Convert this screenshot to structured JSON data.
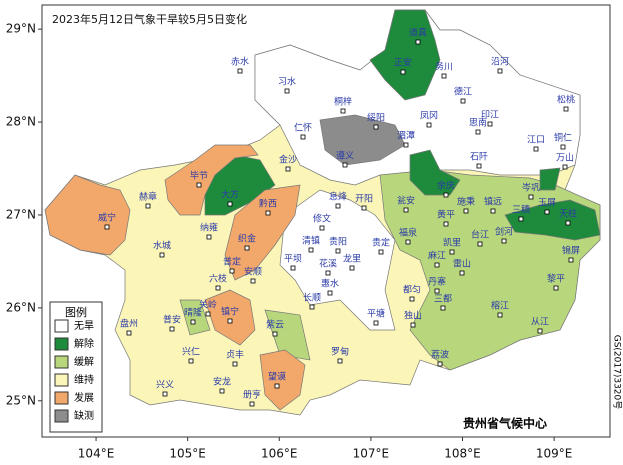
{
  "map": {
    "title": "2023年5月12日气象干旱较5月5日变化",
    "xlim": [
      103.41,
      109.61
    ],
    "ylim": [
      24.61,
      29.26
    ],
    "xticks": [
      {
        "value": 104,
        "label": "104°E"
      },
      {
        "value": 105,
        "label": "105°E"
      },
      {
        "value": 106,
        "label": "106°E"
      },
      {
        "value": 107,
        "label": "107°E"
      },
      {
        "value": 108,
        "label": "108°E"
      },
      {
        "value": 109,
        "label": "109°E"
      }
    ],
    "yticks": [
      {
        "value": 25,
        "label": "25°N"
      },
      {
        "value": 26,
        "label": "26°N"
      },
      {
        "value": 27,
        "label": "27°N"
      },
      {
        "value": 28,
        "label": "28°N"
      },
      {
        "value": 29,
        "label": "29°N"
      }
    ],
    "legend": {
      "title": "图例",
      "items": [
        {
          "name": "无旱",
          "color": "#ffffff"
        },
        {
          "name": "解除",
          "color": "#1e8a3c"
        },
        {
          "name": "缓解",
          "color": "#b8d77c"
        },
        {
          "name": "维持",
          "color": "#fbf6b8"
        },
        {
          "name": "发展",
          "color": "#f2a86b"
        },
        {
          "name": "缺测",
          "color": "#8c8c8c"
        }
      ]
    },
    "cities": [
      "道真",
      "正安",
      "务川",
      "沿河",
      "赤水",
      "习水",
      "桐梓",
      "德江",
      "印江",
      "松桃",
      "绥阳",
      "凤冈",
      "思南",
      "仁怀",
      "湄潭",
      "江口",
      "铜仁",
      "遵义",
      "石阡",
      "万山",
      "金沙",
      "毕节",
      "大方",
      "余庆",
      "岑巩",
      "赫章",
      "黔西",
      "息烽",
      "开阳",
      "施秉",
      "镇远",
      "玉屏",
      "威宁",
      "瓮安",
      "黄平",
      "三穗",
      "天柱",
      "修文",
      "织金",
      "纳雍",
      "清镇",
      "贵阳",
      "福泉",
      "凯里",
      "台江",
      "剑河",
      "锦屏",
      "水城",
      "平坝",
      "龙里",
      "贵定",
      "麻江",
      "雷山",
      "六枝",
      "安顺",
      "惠水",
      "丹寨",
      "榕江",
      "黎平",
      "长顺",
      "都匀",
      "三都",
      "普定",
      "关岭",
      "紫云",
      "镇宁",
      "盘州",
      "普安",
      "平塘",
      "独山",
      "从江",
      "晴隆",
      "兴仁",
      "贞丰",
      "罗甸",
      "荔波",
      "望谟",
      "兴义",
      "安龙",
      "册亨",
      "花溪"
    ],
    "footer": "贵州省气候中心",
    "approval": "GS(2017)3320号"
  }
}
